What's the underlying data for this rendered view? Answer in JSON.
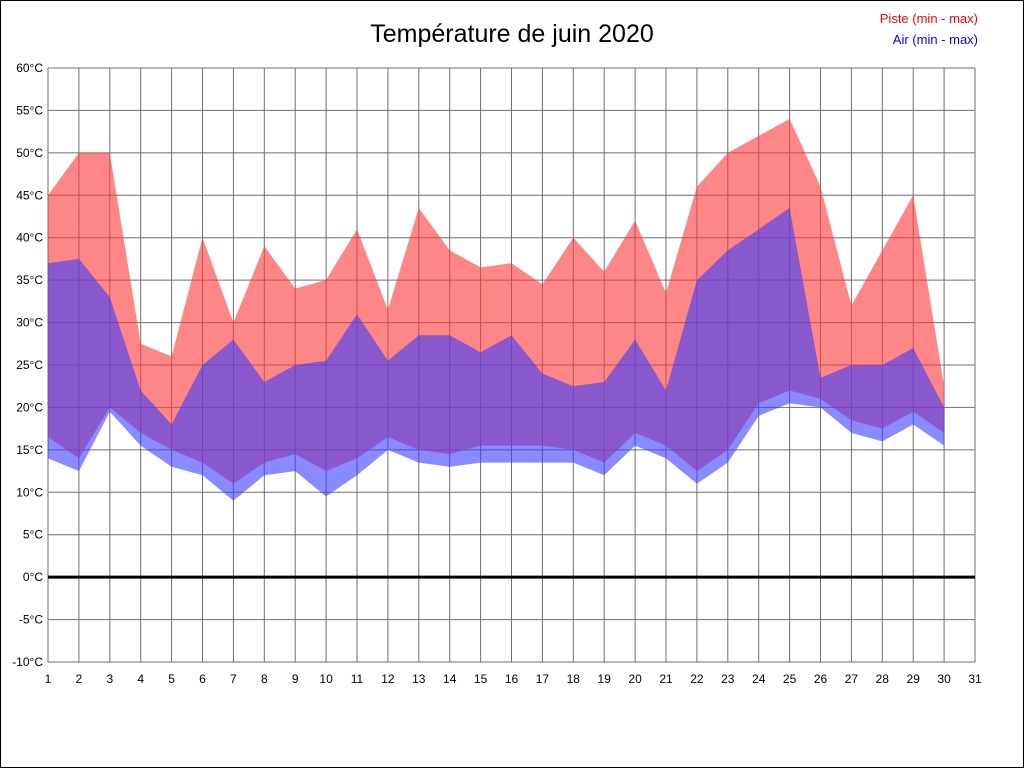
{
  "title": "Température de juin 2020",
  "legend": {
    "piste_label": "Piste (min - max)",
    "air_label": "Air (min - max)",
    "piste_color": "#ff0000",
    "air_color": "#0000ff"
  },
  "chart_data": {
    "type": "area",
    "title": "Température de juin 2020",
    "xlabel": "",
    "ylabel": "",
    "x": [
      1,
      2,
      3,
      4,
      5,
      6,
      7,
      8,
      9,
      10,
      11,
      12,
      13,
      14,
      15,
      16,
      17,
      18,
      19,
      20,
      21,
      22,
      23,
      24,
      25,
      26,
      27,
      28,
      29,
      30
    ],
    "series": [
      {
        "name": "Piste (min - max)",
        "color": "#ff3c3c",
        "opacity": 0.62,
        "max": [
          45,
          50,
          50,
          27.5,
          26,
          40,
          30,
          39,
          34,
          35,
          41,
          31.5,
          43.5,
          38.5,
          36.5,
          37,
          34.5,
          40,
          36,
          42,
          33.5,
          46,
          50,
          52,
          54,
          46,
          32,
          38.5,
          45,
          22.5
        ],
        "min": [
          16.5,
          14,
          20,
          17,
          15,
          13.5,
          11,
          13.5,
          14.5,
          12.5,
          14,
          16.5,
          15,
          14.5,
          15.5,
          15.5,
          15.5,
          15,
          13.5,
          17,
          15.5,
          12.5,
          15,
          20.5,
          22,
          21,
          18.5,
          17.5,
          19.5,
          17
        ]
      },
      {
        "name": "Air (min - max)",
        "color": "#3c3cff",
        "opacity": 0.6,
        "max": [
          37,
          37.5,
          33,
          22,
          18,
          25,
          28,
          23,
          25,
          25.5,
          31,
          25.5,
          28.5,
          28.5,
          26.5,
          28.5,
          24,
          22.5,
          23,
          28,
          22,
          35,
          38.5,
          41,
          43.5,
          23.5,
          25,
          25,
          27,
          20
        ],
        "min": [
          14,
          12.5,
          19.5,
          15.5,
          13,
          12,
          9,
          12,
          12.5,
          9.5,
          12,
          15,
          13.5,
          13,
          13.5,
          13.5,
          13.5,
          13.5,
          12,
          15.5,
          14,
          11,
          13.5,
          19,
          20.5,
          20,
          17,
          16,
          18,
          15.5
        ]
      }
    ],
    "xlim": [
      1,
      31
    ],
    "ylim": [
      -10,
      60
    ],
    "y_tick_step": 5,
    "x_ticks": [
      "1",
      "2",
      "3",
      "4",
      "5",
      "6",
      "7",
      "8",
      "9",
      "10",
      "11",
      "12",
      "13",
      "14",
      "15",
      "16",
      "17",
      "18",
      "19",
      "20",
      "21",
      "22",
      "23",
      "24",
      "25",
      "26",
      "27",
      "28",
      "29",
      "30",
      "31"
    ],
    "y_ticks": [
      "60°C",
      "55°C",
      "50°C",
      "45°C",
      "40°C",
      "35°C",
      "30°C",
      "25°C",
      "20°C",
      "15°C",
      "10°C",
      "5°C",
      "0°C",
      "-5°C",
      "-10°C"
    ],
    "zero_line": 0,
    "grid": true,
    "grid_color": "#6f6f6f",
    "legend_position": "top-right"
  }
}
